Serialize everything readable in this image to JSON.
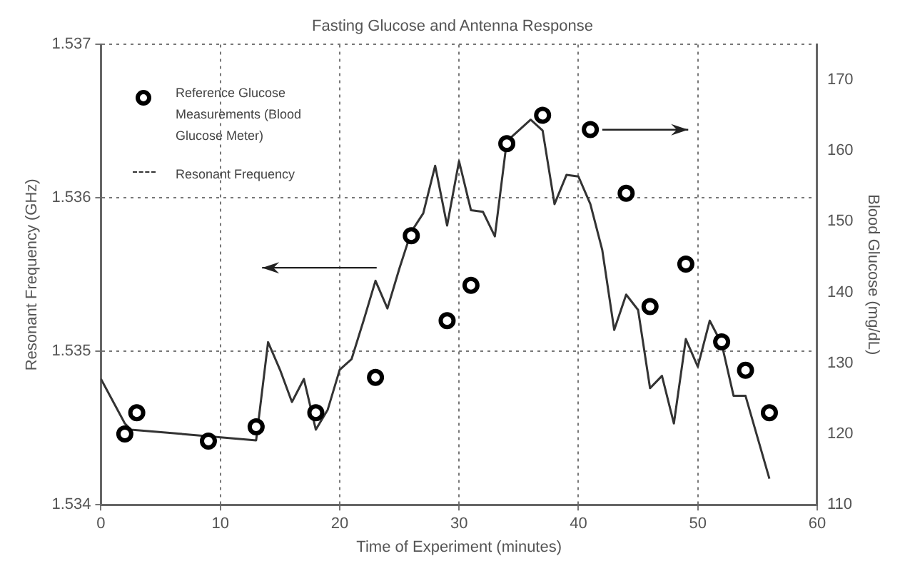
{
  "chart_data": {
    "type": "line",
    "title": "Fasting Glucose and Antenna Response",
    "xlabel": "Time of Experiment (minutes)",
    "ylabel": "Resonant Frequency (GHz)",
    "y2label": "Blood Glucose (mg/dL)",
    "series": [
      {
        "name": "Reference Glucose Measurements (Blood Glucose Meter)",
        "type": "scatter",
        "axis": "y2",
        "color": "#000000",
        "marker": "circle",
        "x": [
          2,
          3,
          9,
          13,
          18,
          23,
          26,
          29,
          31,
          34,
          37,
          41,
          44,
          46,
          49,
          52,
          54,
          56
        ],
        "values": [
          120,
          123,
          119,
          121,
          123,
          128,
          148,
          136,
          141,
          161,
          165,
          163,
          154,
          138,
          144,
          133,
          129,
          123
        ]
      },
      {
        "name": "Resonant Frequency",
        "type": "line",
        "color": "#333333",
        "marker": "none",
        "line_style": "solid",
        "x": [
          0,
          2,
          2.5,
          13,
          14,
          15,
          16,
          17,
          18,
          19,
          20,
          21,
          22,
          23,
          24,
          25,
          26,
          27,
          28,
          29,
          30,
          31,
          32,
          33,
          34,
          36,
          37,
          38,
          39,
          40,
          41,
          42,
          43,
          44,
          45,
          46,
          47,
          48,
          49,
          50,
          51,
          52,
          53,
          54,
          55,
          56
        ],
        "values": [
          1.53482,
          1.53453,
          1.53449,
          1.53442,
          1.53506,
          1.53488,
          1.53467,
          1.53482,
          1.53449,
          1.53462,
          1.53488,
          1.53495,
          1.5352,
          1.53546,
          1.53528,
          1.53554,
          1.53578,
          1.5359,
          1.53621,
          1.53582,
          1.53624,
          1.53592,
          1.53591,
          1.53575,
          1.53637,
          1.53651,
          1.53644,
          1.53596,
          1.53615,
          1.53614,
          1.53596,
          1.53566,
          1.53514,
          1.53537,
          1.53527,
          1.53476,
          1.53484,
          1.53453,
          1.53508,
          1.5349,
          1.5352,
          1.53505,
          1.53471,
          1.53471,
          1.53444,
          1.53417
        ]
      }
    ],
    "xlim": [
      0,
      60
    ],
    "xticks": [
      0,
      10,
      20,
      30,
      40,
      50,
      60
    ],
    "ylim": [
      1.534,
      1.537
    ],
    "yticks": [
      1.534,
      1.535,
      1.536,
      1.537
    ],
    "y2lim": [
      110,
      175
    ],
    "y2ticks": [
      110,
      120,
      130,
      140,
      150,
      160,
      170
    ],
    "grid": true,
    "legend": "top left"
  }
}
